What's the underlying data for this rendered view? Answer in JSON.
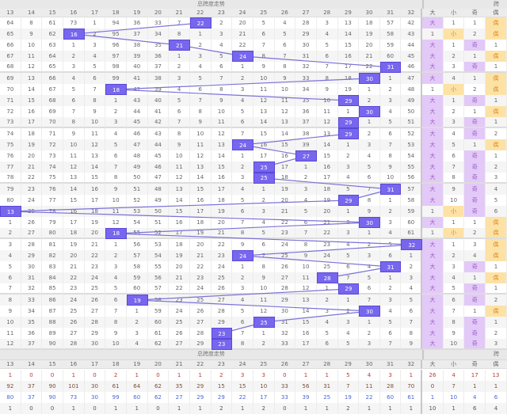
{
  "title": "总跨度走势",
  "right_title": "跨",
  "columns": [
    "13",
    "14",
    "15",
    "16",
    "17",
    "18",
    "19",
    "20",
    "21",
    "22",
    "23",
    "24",
    "25",
    "26",
    "27",
    "28",
    "29",
    "30",
    "31",
    "32",
    "大",
    "小",
    "奇",
    "偶"
  ],
  "colors": {
    "hit": "#7766ee",
    "big_odd": "#e3c9f7",
    "small_even": "#fde2a6",
    "line": "#7b72d8"
  },
  "rows": [
    {
      "hit": 22,
      "cells": [
        "64",
        "8",
        "61",
        "73",
        "1",
        "94",
        "36",
        "33",
        "7",
        "22",
        "2",
        "20",
        "5",
        "4",
        "28",
        "3",
        "13",
        "18",
        "57",
        "42",
        "大",
        "1",
        "1",
        "偶"
      ]
    },
    {
      "hit": 16,
      "cells": [
        "65",
        "9",
        "62",
        "16",
        "2",
        "95",
        "37",
        "34",
        "8",
        "1",
        "3",
        "21",
        "6",
        "5",
        "29",
        "4",
        "14",
        "19",
        "58",
        "43",
        "1",
        "小",
        "2",
        "偶"
      ]
    },
    {
      "hit": 21,
      "cells": [
        "66",
        "10",
        "63",
        "1",
        "3",
        "96",
        "38",
        "35",
        "21",
        "2",
        "4",
        "22",
        "7",
        "6",
        "30",
        "5",
        "15",
        "20",
        "59",
        "44",
        "大",
        "1",
        "奇",
        "1"
      ]
    },
    {
      "hit": 24,
      "cells": [
        "67",
        "11",
        "64",
        "2",
        "4",
        "97",
        "39",
        "36",
        "1",
        "3",
        "5",
        "24",
        "8",
        "7",
        "31",
        "6",
        "16",
        "21",
        "60",
        "45",
        "大",
        "2",
        "1",
        "偶"
      ]
    },
    {
      "hit": 31,
      "cells": [
        "68",
        "12",
        "65",
        "3",
        "5",
        "98",
        "40",
        "37",
        "2",
        "4",
        "6",
        "1",
        "9",
        "8",
        "32",
        "7",
        "17",
        "22",
        "31",
        "46",
        "大",
        "3",
        "奇",
        "1"
      ]
    },
    {
      "hit": 30,
      "cells": [
        "69",
        "13",
        "66",
        "4",
        "6",
        "99",
        "41",
        "38",
        "3",
        "5",
        "7",
        "2",
        "10",
        "9",
        "33",
        "8",
        "18",
        "30",
        "1",
        "47",
        "大",
        "4",
        "1",
        "偶"
      ]
    },
    {
      "hit": 18,
      "cells": [
        "70",
        "14",
        "67",
        "5",
        "7",
        "18",
        "42",
        "39",
        "4",
        "6",
        "8",
        "3",
        "11",
        "10",
        "34",
        "9",
        "19",
        "1",
        "2",
        "48",
        "1",
        "小",
        "2",
        "偶"
      ]
    },
    {
      "hit": 29,
      "cells": [
        "71",
        "15",
        "68",
        "6",
        "8",
        "1",
        "43",
        "40",
        "5",
        "7",
        "9",
        "4",
        "12",
        "11",
        "35",
        "10",
        "29",
        "2",
        "3",
        "49",
        "大",
        "1",
        "奇",
        "1"
      ]
    },
    {
      "hit": 30,
      "cells": [
        "72",
        "16",
        "69",
        "7",
        "9",
        "2",
        "44",
        "41",
        "6",
        "8",
        "10",
        "5",
        "13",
        "12",
        "36",
        "11",
        "1",
        "30",
        "4",
        "50",
        "大",
        "2",
        "1",
        "偶"
      ]
    },
    {
      "hit": 29,
      "cells": [
        "73",
        "17",
        "70",
        "8",
        "10",
        "3",
        "45",
        "42",
        "7",
        "9",
        "11",
        "6",
        "14",
        "13",
        "37",
        "12",
        "29",
        "1",
        "5",
        "51",
        "大",
        "3",
        "奇",
        "1"
      ]
    },
    {
      "hit": 29,
      "cells": [
        "74",
        "18",
        "71",
        "9",
        "11",
        "4",
        "46",
        "43",
        "8",
        "10",
        "12",
        "7",
        "15",
        "14",
        "38",
        "13",
        "29",
        "2",
        "6",
        "52",
        "大",
        "4",
        "奇",
        "2"
      ]
    },
    {
      "hit": 24,
      "cells": [
        "75",
        "19",
        "72",
        "10",
        "12",
        "5",
        "47",
        "44",
        "9",
        "11",
        "13",
        "24",
        "16",
        "15",
        "39",
        "14",
        "1",
        "3",
        "7",
        "53",
        "大",
        "5",
        "1",
        "偶"
      ]
    },
    {
      "hit": 27,
      "cells": [
        "76",
        "20",
        "73",
        "11",
        "13",
        "6",
        "48",
        "45",
        "10",
        "12",
        "14",
        "1",
        "17",
        "16",
        "27",
        "15",
        "2",
        "4",
        "8",
        "54",
        "大",
        "6",
        "奇",
        "1"
      ]
    },
    {
      "hit": 25,
      "cells": [
        "77",
        "21",
        "74",
        "12",
        "14",
        "7",
        "49",
        "46",
        "11",
        "13",
        "15",
        "2",
        "25",
        "17",
        "1",
        "16",
        "3",
        "5",
        "9",
        "55",
        "大",
        "7",
        "奇",
        "2"
      ]
    },
    {
      "hit": 25,
      "cells": [
        "78",
        "22",
        "75",
        "13",
        "15",
        "8",
        "50",
        "47",
        "12",
        "14",
        "16",
        "3",
        "25",
        "18",
        "2",
        "17",
        "4",
        "6",
        "10",
        "56",
        "大",
        "8",
        "奇",
        "3"
      ]
    },
    {
      "hit": 31,
      "cells": [
        "79",
        "23",
        "76",
        "14",
        "16",
        "9",
        "51",
        "48",
        "13",
        "15",
        "17",
        "4",
        "1",
        "19",
        "3",
        "18",
        "5",
        "7",
        "31",
        "57",
        "大",
        "9",
        "奇",
        "4"
      ]
    },
    {
      "hit": 29,
      "cells": [
        "80",
        "24",
        "77",
        "15",
        "17",
        "10",
        "52",
        "49",
        "14",
        "16",
        "18",
        "5",
        "2",
        "20",
        "4",
        "19",
        "29",
        "8",
        "1",
        "58",
        "大",
        "10",
        "奇",
        "5"
      ]
    },
    {
      "hit": 13,
      "cells": [
        "13",
        "25",
        "78",
        "16",
        "18",
        "11",
        "53",
        "50",
        "15",
        "17",
        "19",
        "6",
        "3",
        "21",
        "5",
        "20",
        "1",
        "9",
        "2",
        "59",
        "1",
        "小",
        "奇",
        "6"
      ]
    },
    {
      "hit": 30,
      "cells": [
        "1",
        "26",
        "79",
        "17",
        "19",
        "12",
        "54",
        "51",
        "16",
        "18",
        "20",
        "7",
        "4",
        "22",
        "6",
        "21",
        "2",
        "30",
        "3",
        "60",
        "大",
        "1",
        "1",
        "偶"
      ]
    },
    {
      "hit": 18,
      "cells": [
        "2",
        "27",
        "80",
        "18",
        "20",
        "18",
        "55",
        "52",
        "17",
        "19",
        "21",
        "8",
        "5",
        "23",
        "7",
        "22",
        "3",
        "1",
        "4",
        "61",
        "1",
        "小",
        "2",
        "偶"
      ]
    },
    {
      "hit": 32,
      "cells": [
        "3",
        "28",
        "81",
        "19",
        "21",
        "1",
        "56",
        "53",
        "18",
        "20",
        "22",
        "9",
        "6",
        "24",
        "8",
        "23",
        "4",
        "2",
        "5",
        "32",
        "大",
        "1",
        "3",
        "偶"
      ]
    },
    {
      "hit": 24,
      "cells": [
        "4",
        "29",
        "82",
        "20",
        "22",
        "2",
        "57",
        "54",
        "19",
        "21",
        "23",
        "24",
        "7",
        "25",
        "9",
        "24",
        "5",
        "3",
        "6",
        "1",
        "大",
        "2",
        "4",
        "偶"
      ]
    },
    {
      "hit": 31,
      "cells": [
        "5",
        "30",
        "83",
        "21",
        "23",
        "3",
        "58",
        "55",
        "20",
        "22",
        "24",
        "1",
        "8",
        "26",
        "10",
        "25",
        "6",
        "4",
        "31",
        "2",
        "大",
        "3",
        "奇",
        "1"
      ]
    },
    {
      "hit": 28,
      "cells": [
        "6",
        "31",
        "84",
        "22",
        "24",
        "4",
        "59",
        "56",
        "21",
        "23",
        "25",
        "2",
        "9",
        "27",
        "11",
        "28",
        "7",
        "5",
        "1",
        "3",
        "大",
        "4",
        "1",
        "偶"
      ]
    },
    {
      "hit": 29,
      "cells": [
        "7",
        "32",
        "85",
        "23",
        "25",
        "5",
        "60",
        "57",
        "22",
        "24",
        "26",
        "3",
        "10",
        "28",
        "12",
        "1",
        "29",
        "6",
        "2",
        "4",
        "大",
        "5",
        "奇",
        "1"
      ]
    },
    {
      "hit": 19,
      "cells": [
        "8",
        "33",
        "86",
        "24",
        "26",
        "6",
        "19",
        "58",
        "23",
        "25",
        "27",
        "4",
        "11",
        "29",
        "13",
        "2",
        "1",
        "7",
        "3",
        "5",
        "大",
        "6",
        "奇",
        "2"
      ]
    },
    {
      "hit": 30,
      "cells": [
        "9",
        "34",
        "87",
        "25",
        "27",
        "7",
        "1",
        "59",
        "24",
        "26",
        "28",
        "5",
        "12",
        "30",
        "14",
        "3",
        "2",
        "30",
        "4",
        "6",
        "大",
        "7",
        "1",
        "偶"
      ]
    },
    {
      "hit": 25,
      "cells": [
        "10",
        "35",
        "88",
        "26",
        "28",
        "8",
        "2",
        "60",
        "25",
        "27",
        "29",
        "6",
        "25",
        "31",
        "15",
        "4",
        "3",
        "1",
        "5",
        "7",
        "大",
        "8",
        "奇",
        "1"
      ]
    },
    {
      "hit": 23,
      "cells": [
        "11",
        "36",
        "89",
        "27",
        "29",
        "9",
        "3",
        "61",
        "26",
        "28",
        "23",
        "7",
        "1",
        "32",
        "16",
        "5",
        "4",
        "2",
        "6",
        "8",
        "大",
        "9",
        "奇",
        "2"
      ]
    },
    {
      "hit": 23,
      "cells": [
        "12",
        "37",
        "90",
        "28",
        "30",
        "10",
        "4",
        "62",
        "27",
        "29",
        "23",
        "8",
        "2",
        "33",
        "17",
        "6",
        "5",
        "3",
        "7",
        "9",
        "大",
        "10",
        "奇",
        "3"
      ]
    }
  ],
  "footer": [
    [
      "1",
      "0",
      "0",
      "1",
      "0",
      "2",
      "1",
      "0",
      "1",
      "1",
      "2",
      "3",
      "3",
      "0",
      "1",
      "1",
      "5",
      "4",
      "3",
      "1",
      "26",
      "4",
      "17",
      "13"
    ],
    [
      "92",
      "37",
      "90",
      "101",
      "30",
      "61",
      "64",
      "62",
      "35",
      "29",
      "15",
      "15",
      "10",
      "33",
      "56",
      "31",
      "7",
      "11",
      "28",
      "70",
      "0",
      "7",
      "1",
      "1"
    ],
    [
      "80",
      "37",
      "90",
      "73",
      "30",
      "99",
      "60",
      "62",
      "27",
      "29",
      "29",
      "22",
      "17",
      "33",
      "39",
      "25",
      "19",
      "22",
      "60",
      "61",
      "1",
      "10",
      "4",
      "6"
    ],
    [
      "1",
      "0",
      "0",
      "1",
      "0",
      "1",
      "1",
      "0",
      "1",
      "1",
      "2",
      "1",
      "2",
      "0",
      "1",
      "1",
      "2",
      "1",
      "1",
      "1",
      "10",
      "1",
      "6",
      "4"
    ]
  ]
}
